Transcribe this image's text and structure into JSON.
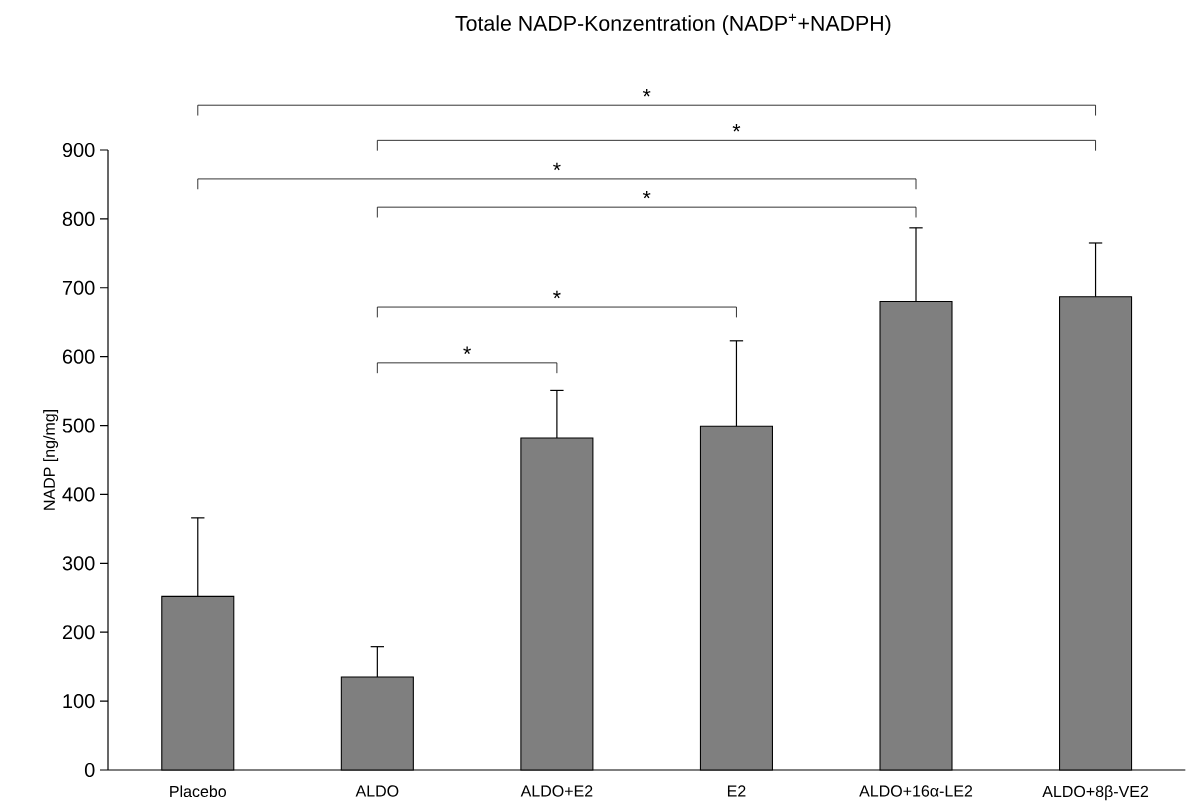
{
  "chart_data": {
    "type": "bar",
    "title": "Totale NADP-Konzentration (NADP$^{+}$+NADPH)",
    "ylabel": "NADP [ng/mg]",
    "categories": [
      "Placebo",
      "ALDO",
      "ALDO+E2",
      "E2",
      "ALDO+16α-LE2",
      "ALDO+8β-VE2"
    ],
    "values": [
      252,
      135,
      482,
      499,
      680,
      687
    ],
    "errors": [
      114,
      44,
      69,
      124,
      107,
      78
    ],
    "color": "#7f7f7f",
    "ylim": [
      0,
      900
    ],
    "yticks": [
      0,
      100,
      200,
      300,
      400,
      500,
      600,
      700,
      800,
      900
    ],
    "grid": false,
    "annotations": [
      "*",
      "*",
      "*",
      "*",
      "*",
      "*"
    ]
  }
}
